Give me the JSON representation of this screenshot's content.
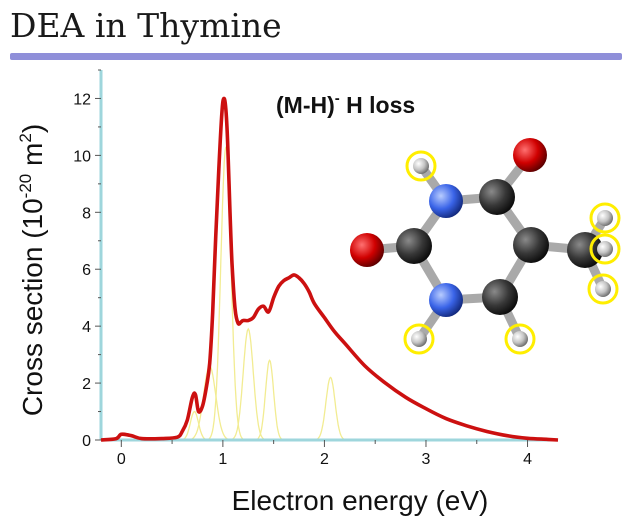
{
  "header": {
    "title": "DEA in Thymine"
  },
  "annotation": {
    "label": "(M-H)",
    "superscript": "-",
    "suffix": " H loss"
  },
  "colors": {
    "title_rule": "#8f8fd9",
    "axis": "#9ed6dc",
    "total_curve": "#cc1010",
    "component_curves": "#f2ec92",
    "hydrogen_highlight": "#ffee00",
    "oxygen_atom": "#cc0000",
    "nitrogen_atom": "#3a64e8",
    "carbon_atom": "#333333",
    "hydrogen_atom": "#cccccc"
  },
  "molecule": {
    "name": "thymine",
    "atoms": [
      "O",
      "C",
      "N",
      "H",
      "C",
      "O",
      "N",
      "H",
      "C",
      "H",
      "C",
      "C",
      "H",
      "H",
      "H"
    ],
    "highlighted_hydrogens": 6
  },
  "chart_data": {
    "type": "line",
    "title": "",
    "xlabel": "Electron energy (eV)",
    "ylabel_main": "Cross section (10",
    "ylabel_sup": "-20",
    "ylabel_mid": " m",
    "ylabel_sup2": "2",
    "ylabel_end": ")",
    "xlim": [
      -0.2,
      4.3
    ],
    "ylim": [
      0,
      13
    ],
    "xticks": [
      0,
      1,
      2,
      3,
      4
    ],
    "yticks": [
      0,
      2,
      4,
      6,
      8,
      10,
      12
    ],
    "grid": false,
    "series": [
      {
        "role": "total",
        "x": [
          -0.2,
          -0.05,
          0.0,
          0.1,
          0.2,
          0.4,
          0.55,
          0.6,
          0.65,
          0.7,
          0.73,
          0.76,
          0.8,
          0.84,
          0.87,
          0.9,
          0.93,
          0.96,
          0.99,
          1.01,
          1.03,
          1.05,
          1.07,
          1.09,
          1.12,
          1.15,
          1.18,
          1.2,
          1.25,
          1.3,
          1.35,
          1.4,
          1.45,
          1.5,
          1.55,
          1.6,
          1.65,
          1.7,
          1.75,
          1.8,
          1.85,
          1.9,
          2.0,
          2.1,
          2.2,
          2.4,
          2.6,
          2.8,
          3.0,
          3.2,
          3.4,
          3.6,
          3.8,
          4.0,
          4.2,
          4.3
        ],
        "y": [
          0.0,
          0.05,
          0.2,
          0.15,
          0.05,
          0.05,
          0.1,
          0.3,
          0.7,
          1.5,
          1.6,
          1.0,
          1.2,
          1.9,
          2.7,
          4.5,
          7.2,
          9.5,
          11.5,
          12.0,
          11.6,
          10.2,
          8.0,
          6.2,
          4.6,
          4.1,
          4.15,
          4.2,
          4.2,
          4.3,
          4.6,
          4.7,
          4.5,
          5.0,
          5.4,
          5.6,
          5.7,
          5.8,
          5.7,
          5.5,
          5.2,
          4.8,
          4.3,
          3.8,
          3.4,
          2.6,
          2.0,
          1.5,
          1.1,
          0.75,
          0.5,
          0.3,
          0.15,
          0.06,
          0.02,
          0.0
        ]
      }
    ],
    "components": [
      {
        "center": 0.72,
        "height": 1.0,
        "width": 0.04
      },
      {
        "center": 0.87,
        "height": 2.6,
        "width": 0.06
      },
      {
        "center": 1.03,
        "height": 10.3,
        "width": 0.05
      },
      {
        "center": 1.25,
        "height": 3.9,
        "width": 0.05
      },
      {
        "center": 1.46,
        "height": 2.8,
        "width": 0.04
      },
      {
        "center": 2.06,
        "height": 2.2,
        "width": 0.045
      }
    ]
  }
}
